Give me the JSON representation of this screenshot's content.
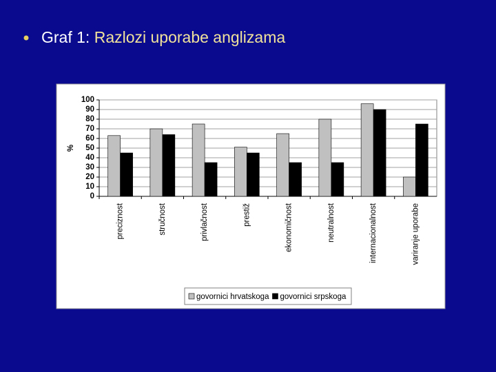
{
  "slide": {
    "title_prefix": "Graf 1:",
    "title": "Razlozi uporabe anglizama"
  },
  "chart_data": {
    "type": "bar",
    "y_label": "%",
    "categories": [
      "preciznost",
      "stručnost",
      "privlačnost",
      "prestiž",
      "ekonomičnost",
      "neutralnost",
      "internacionalnost",
      "variranje uporabe"
    ],
    "series": [
      {
        "name": "govornici hrvatskoga",
        "color": "#c0c0c0",
        "values": [
          63,
          70,
          75,
          51,
          65,
          80,
          96,
          20
        ]
      },
      {
        "name": "govornici srpskoga",
        "color": "#000000",
        "values": [
          45,
          64,
          35,
          45,
          35,
          35,
          90,
          75
        ]
      }
    ],
    "ylim": [
      0,
      100
    ],
    "yticks": [
      0,
      10,
      20,
      30,
      40,
      50,
      60,
      70,
      80,
      90,
      100
    ],
    "grid": true,
    "legend": "bottom"
  }
}
